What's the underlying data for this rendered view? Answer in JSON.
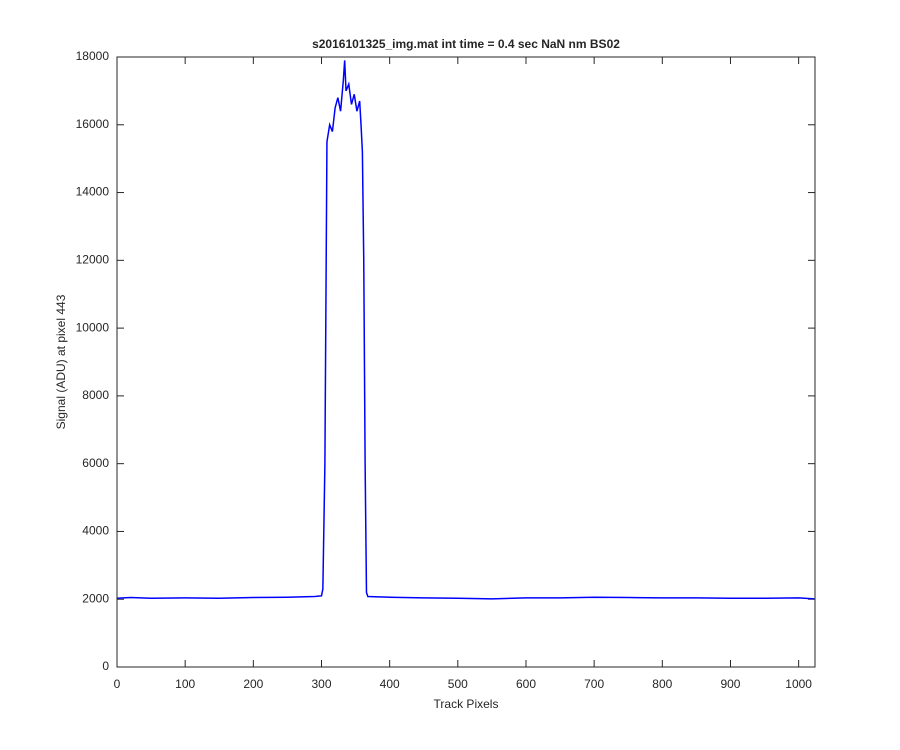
{
  "chart_data": {
    "type": "line",
    "title": "s2016101325_img.mat int time = 0.4 sec  NaN nm BS02",
    "x_label": "Track Pixels",
    "y_label": "Signal (ADU) at pixel 443",
    "x": [
      0,
      20,
      50,
      100,
      150,
      200,
      250,
      290,
      300,
      302,
      305,
      308,
      312,
      316,
      320,
      324,
      328,
      332,
      334,
      336,
      340,
      344,
      348,
      352,
      356,
      358,
      360,
      362,
      364,
      366,
      368,
      400,
      450,
      500,
      550,
      600,
      650,
      700,
      750,
      800,
      850,
      900,
      950,
      1000,
      1023
    ],
    "series": [
      {
        "name": "signal",
        "color": "#0000ff",
        "values": [
          2030,
          2050,
          2030,
          2040,
          2030,
          2050,
          2060,
          2080,
          2100,
          2300,
          6000,
          15500,
          16000,
          15800,
          16500,
          16800,
          16400,
          17300,
          17900,
          17000,
          17200,
          16600,
          16900,
          16400,
          16700,
          16000,
          15200,
          12000,
          6000,
          2200,
          2080,
          2060,
          2040,
          2030,
          2010,
          2040,
          2040,
          2060,
          2050,
          2040,
          2040,
          2030,
          2030,
          2040,
          2010
        ]
      }
    ],
    "xlim": [
      0,
      1024
    ],
    "ylim": [
      0,
      18000
    ],
    "xticks": [
      0,
      100,
      200,
      300,
      400,
      500,
      600,
      700,
      800,
      900,
      1000
    ],
    "yticks": [
      0,
      2000,
      4000,
      6000,
      8000,
      10000,
      12000,
      14000,
      16000,
      18000
    ],
    "grid": false
  }
}
